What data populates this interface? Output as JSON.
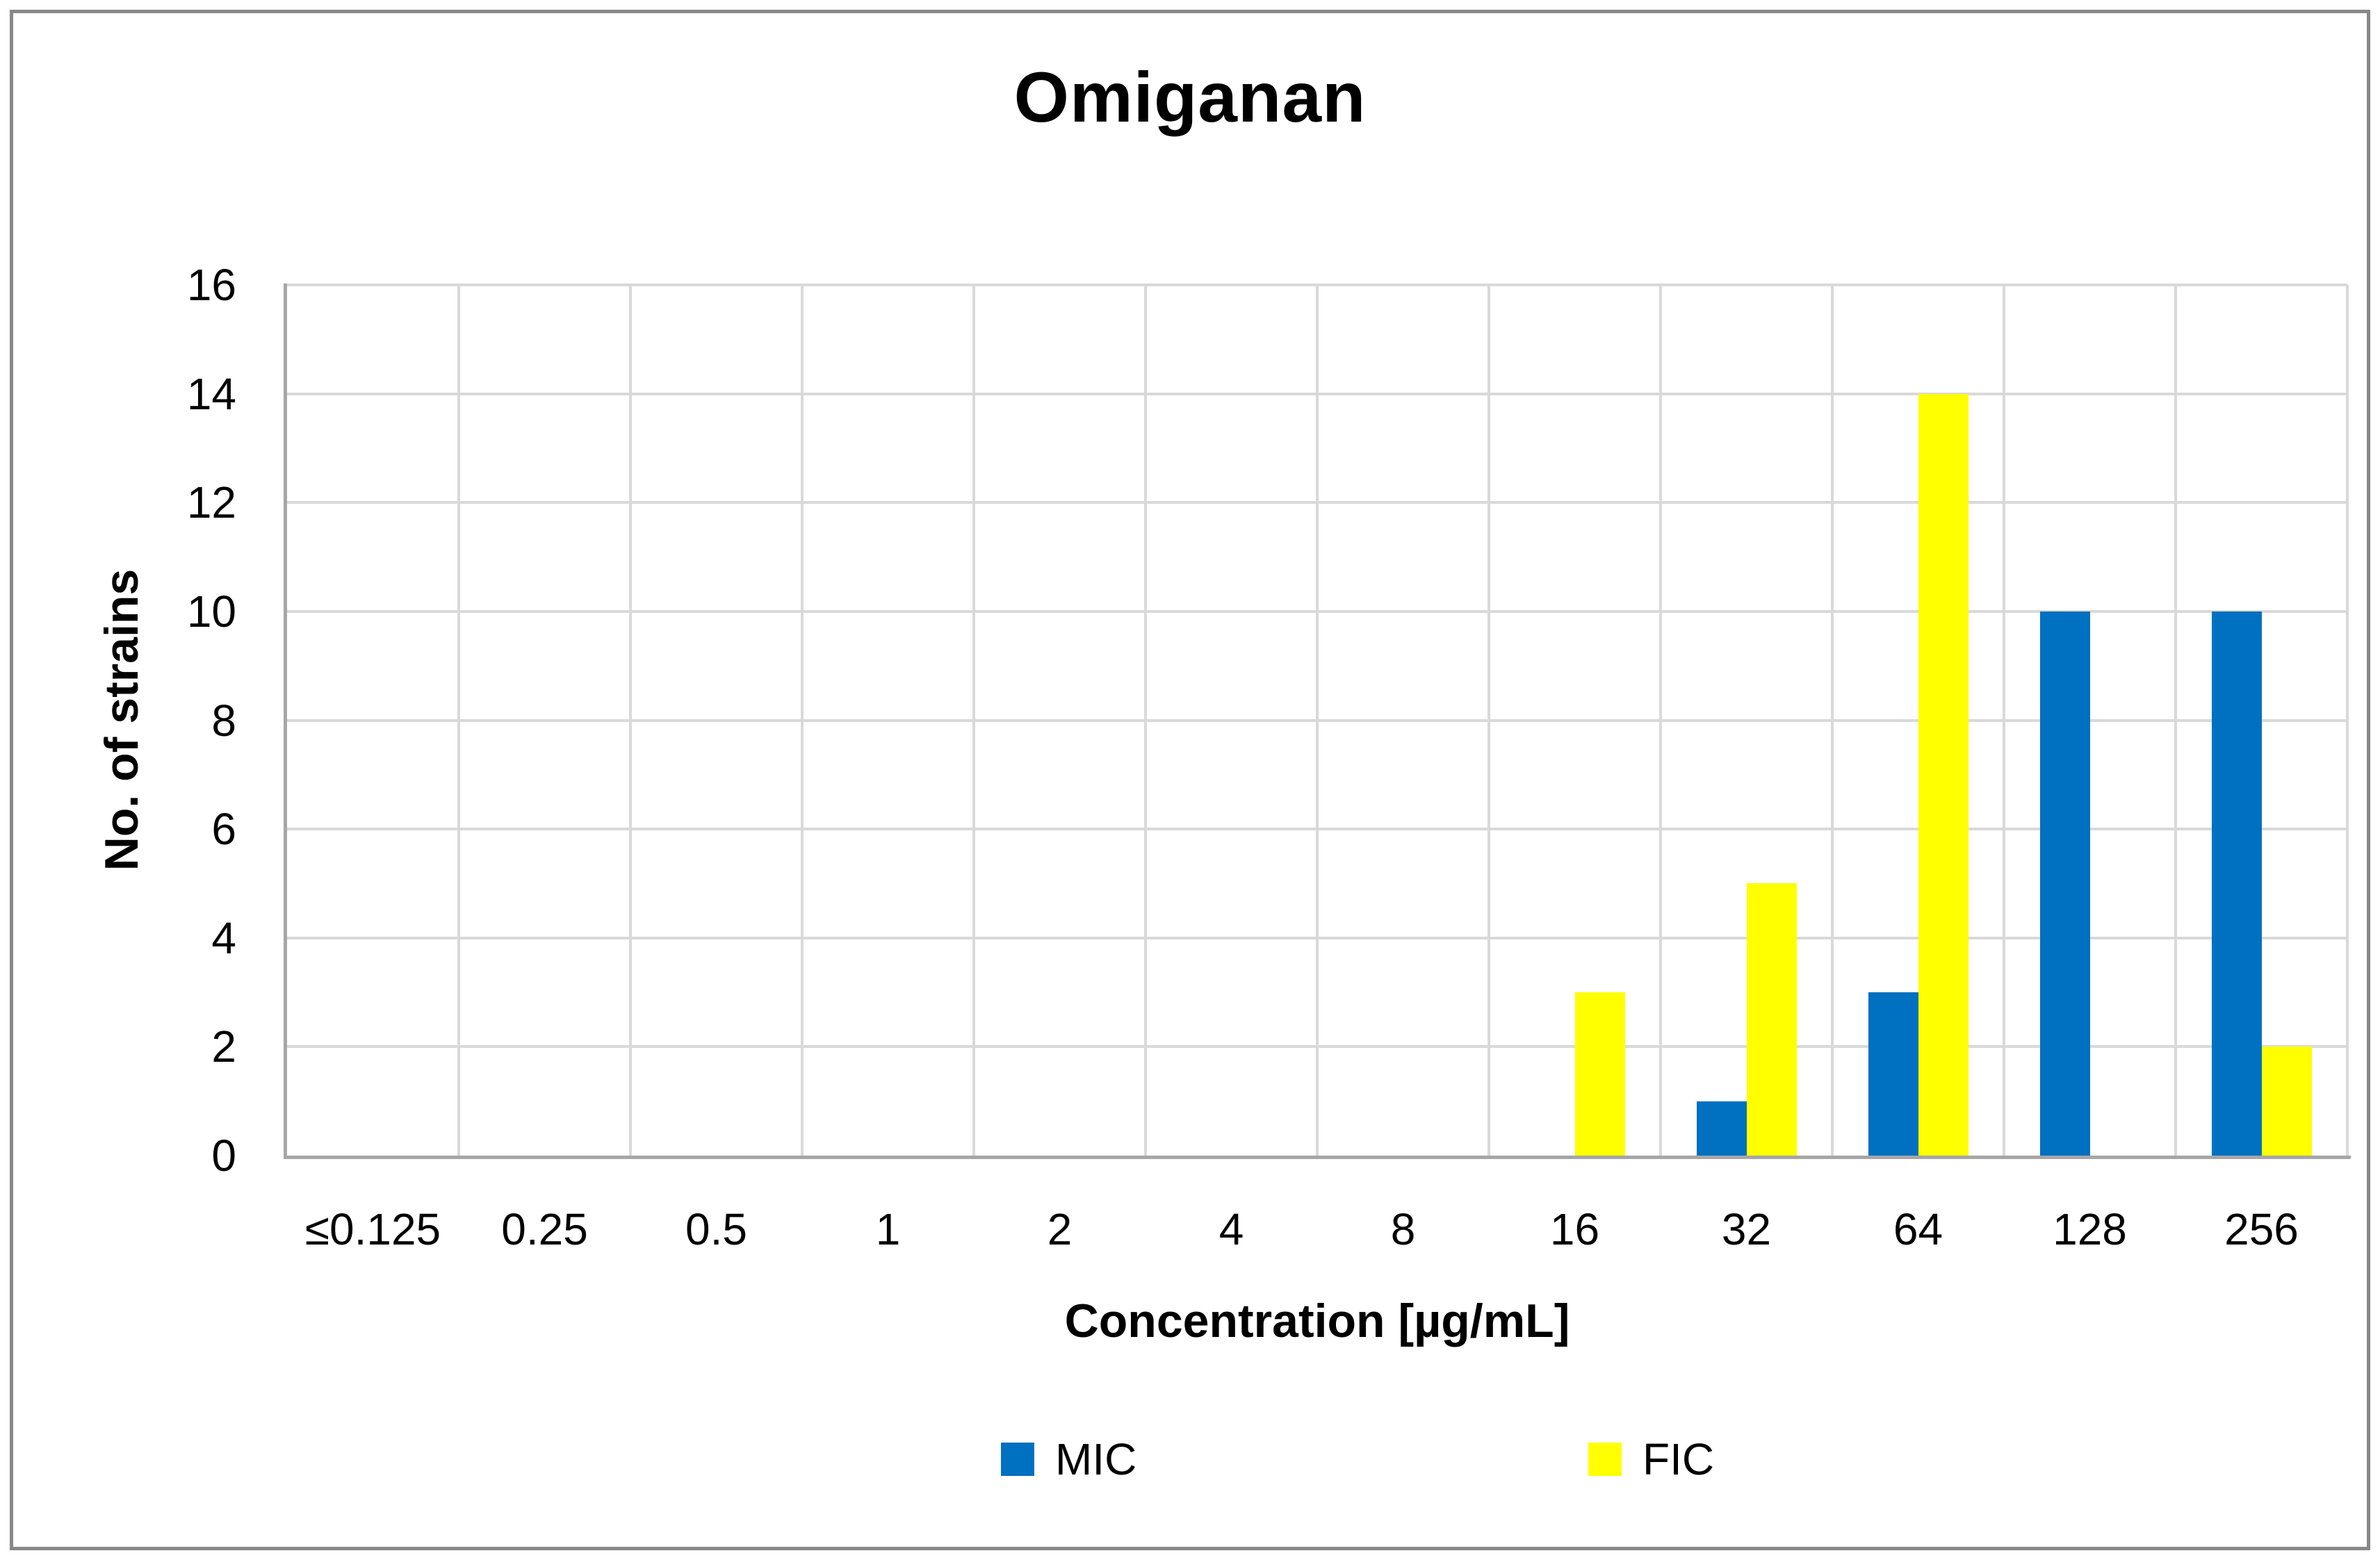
{
  "chart_data": {
    "type": "bar",
    "title": "Omiganan",
    "categories": [
      "≤0.125",
      "0.25",
      "0.5",
      "1",
      "2",
      "4",
      "8",
      "16",
      "32",
      "64",
      "128",
      "256"
    ],
    "series": [
      {
        "name": "MIC",
        "color": "#0070C0",
        "values": [
          0,
          0,
          0,
          0,
          0,
          0,
          0,
          0,
          1,
          3,
          10,
          10
        ]
      },
      {
        "name": "FIC",
        "color": "#FFFF00",
        "values": [
          0,
          0,
          0,
          0,
          0,
          0,
          0,
          3,
          5,
          14,
          0,
          2
        ]
      }
    ],
    "xlabel": "Concentration [µg/mL]",
    "ylabel": "No. of strains",
    "ylim": [
      0,
      16
    ],
    "yticks": [
      0,
      2,
      4,
      6,
      8,
      10,
      12,
      14,
      16
    ],
    "grid": true,
    "legend_position": "bottom"
  },
  "legend": {
    "items": [
      {
        "label": "MIC"
      },
      {
        "label": "FIC"
      }
    ]
  },
  "colors": {
    "mic_blue": "#0070C0",
    "fic_yellow": "#FFFF00",
    "gridline": "#D9D9D9",
    "axis_line": "#A6A6A6",
    "frame_border": "#898989",
    "text": "#000000",
    "background": "#FFFFFF"
  }
}
